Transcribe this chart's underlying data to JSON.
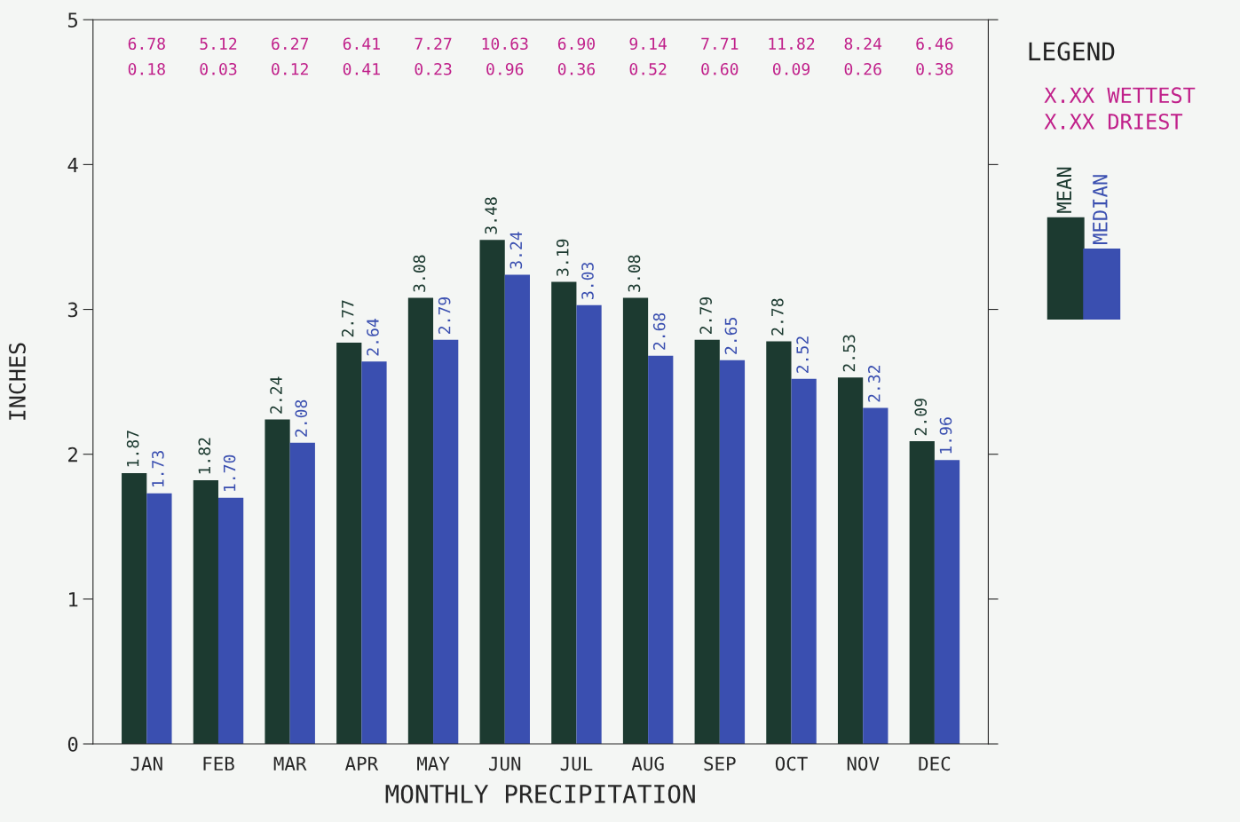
{
  "chart_data": {
    "type": "bar",
    "xlabel": "MONTHLY PRECIPITATION",
    "ylabel": "INCHES",
    "legend_title": "LEGEND",
    "categories": [
      "JAN",
      "FEB",
      "MAR",
      "APR",
      "MAY",
      "JUN",
      "JUL",
      "AUG",
      "SEP",
      "OCT",
      "NOV",
      "DEC"
    ],
    "series": [
      {
        "name": "MEAN",
        "color": "#1c3a30",
        "values": [
          1.87,
          1.82,
          2.24,
          2.77,
          3.08,
          3.48,
          3.19,
          3.08,
          2.79,
          2.78,
          2.53,
          2.09
        ],
        "value_labels": [
          "1.87",
          "1.82",
          "2.24",
          "2.77",
          "3.08",
          "3.48",
          "3.19",
          "3.08",
          "2.79",
          "2.78",
          "2.53",
          "2.09"
        ]
      },
      {
        "name": "MEDIAN",
        "color": "#3a4fb0",
        "values": [
          1.73,
          1.7,
          2.08,
          2.64,
          2.79,
          3.24,
          3.03,
          2.68,
          2.65,
          2.52,
          2.32,
          1.96
        ],
        "value_labels": [
          "1.73",
          "1.70",
          "2.08",
          "2.64",
          "2.79",
          "3.24",
          "3.03",
          "2.68",
          "2.65",
          "2.52",
          "2.32",
          "1.96"
        ]
      }
    ],
    "ylim": [
      0,
      5
    ],
    "yticks": [
      0,
      1,
      2,
      3,
      4,
      5
    ],
    "legend": "right",
    "annotations": [
      "X.XX WETTEST",
      "X.XX DRIEST",
      "6.78",
      "5.12",
      "6.27",
      "6.41",
      "7.27",
      "10.63",
      "6.90",
      "9.14",
      "7.71",
      "11.82",
      "8.24",
      "6.46",
      "0.18",
      "0.03",
      "0.12",
      "0.41",
      "0.23",
      "0.96",
      "0.36",
      "0.52",
      "0.60",
      "0.09",
      "0.26",
      "0.38"
    ]
  }
}
